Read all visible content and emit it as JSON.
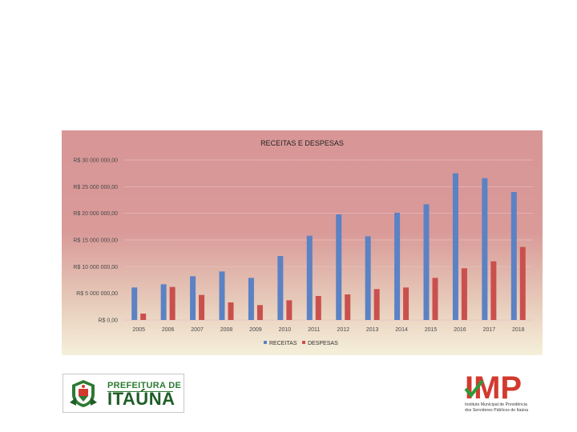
{
  "chart_data": {
    "type": "bar",
    "title": "RECEITAS E DESPESAS",
    "categories": [
      "2005",
      "2006",
      "2007",
      "2008",
      "2009",
      "2010",
      "2011",
      "2012",
      "2013",
      "2014",
      "2015",
      "2016",
      "2017",
      "2018"
    ],
    "series": [
      {
        "name": "RECEITAS",
        "color": "#5b82c4",
        "values": [
          6100000,
          6700000,
          8200000,
          9100000,
          7900000,
          12000000,
          15800000,
          19800000,
          15700000,
          20100000,
          21700000,
          27500000,
          26600000,
          24000000
        ]
      },
      {
        "name": "DESPESAS",
        "color": "#c9504d",
        "values": [
          1200000,
          6200000,
          4700000,
          3300000,
          2800000,
          3700000,
          4500000,
          4800000,
          5800000,
          6100000,
          7900000,
          9700000,
          11000000,
          13700000
        ]
      }
    ],
    "ylim": [
      0,
      30000000
    ],
    "yticks": [
      0,
      5000000,
      10000000,
      15000000,
      20000000,
      25000000,
      30000000
    ],
    "ytick_labels": [
      "R$ 0,00",
      "R$ 5 000 000,00",
      "R$ 10 000 000,00",
      "R$ 15 000 000,00",
      "R$ 20 000 000,00",
      "R$ 25 000 000,00",
      "R$ 30 000 000,00"
    ],
    "grid": true,
    "legend": "bottom"
  },
  "logos": {
    "left": {
      "line1": "PREFEITURA DE",
      "line2": "ITAÚNA"
    },
    "right": {
      "acronym": "IMP",
      "sub1": "Instituto Municipal de Previdência",
      "sub2": "dos Servidores Públicos de Itaúna"
    }
  },
  "colors": {
    "accent_green": "#2d7a32",
    "accent_red": "#d23a2e"
  }
}
